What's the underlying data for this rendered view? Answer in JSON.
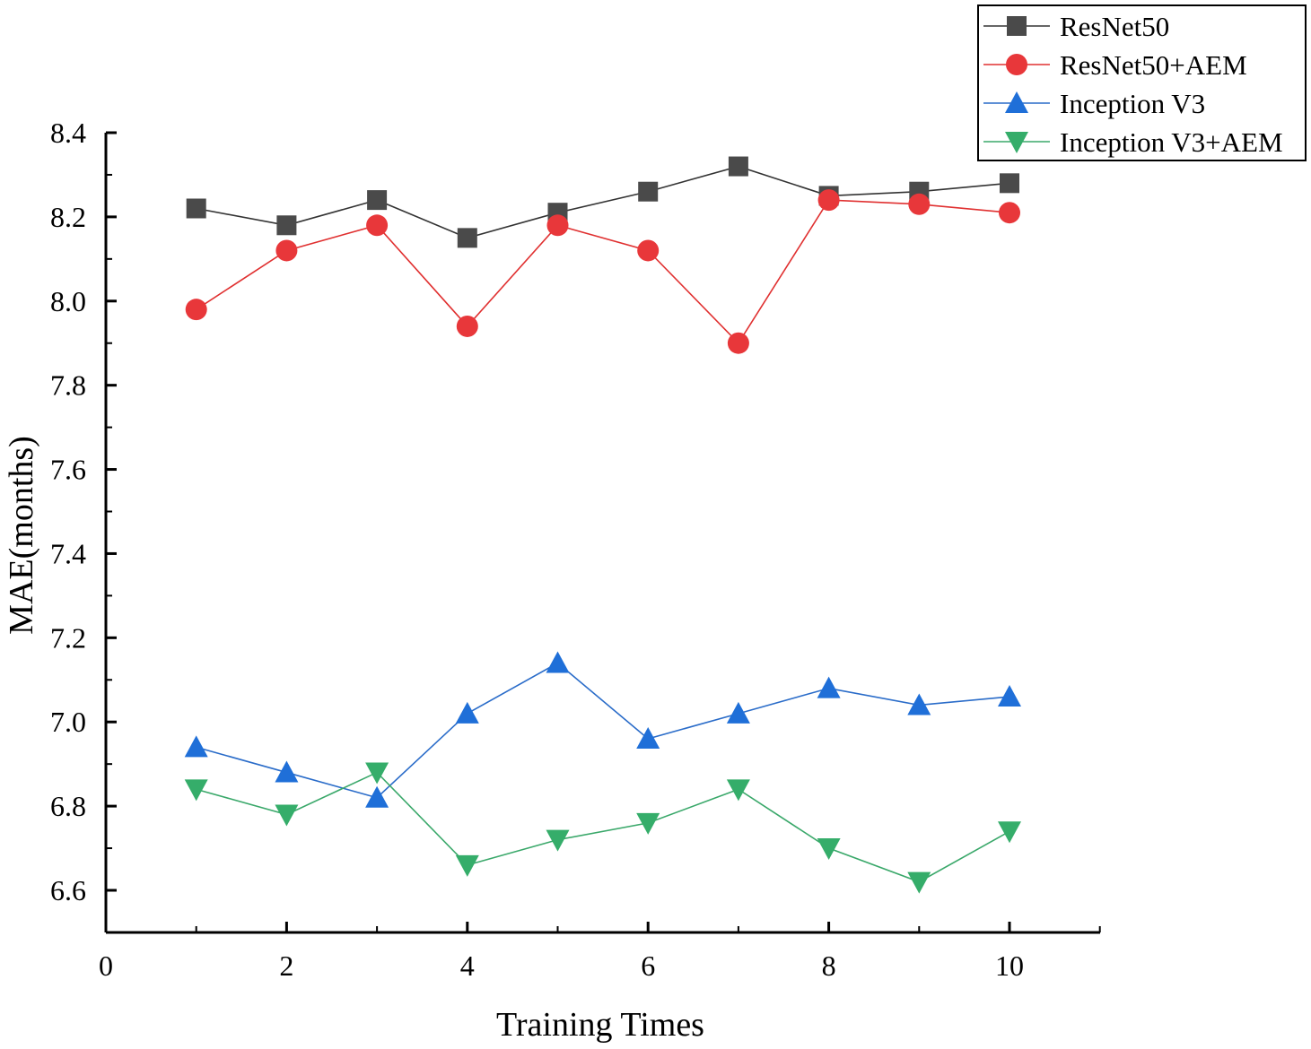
{
  "chart_data": {
    "type": "line",
    "title": "",
    "xlabel": "Training Times",
    "ylabel": "MAE(months)",
    "xlim": [
      0,
      11
    ],
    "ylim": [
      6.5,
      8.4
    ],
    "x_ticks": [
      0,
      2,
      4,
      6,
      8,
      10
    ],
    "x_tick_labels": [
      "0",
      "2",
      "4",
      "6",
      "8",
      "10"
    ],
    "y_ticks": [
      6.6,
      6.8,
      7.0,
      7.2,
      7.4,
      7.6,
      7.8,
      8.0,
      8.2,
      8.4
    ],
    "y_tick_labels": [
      "6.6",
      "6.8",
      "7.0",
      "7.2",
      "7.4",
      "7.6",
      "7.8",
      "8.0",
      "8.2",
      "8.4"
    ],
    "grid": false,
    "legend_position": "top-right",
    "x": [
      1,
      2,
      3,
      4,
      5,
      6,
      7,
      8,
      9,
      10
    ],
    "series": [
      {
        "name": "ResNet50",
        "marker": "square",
        "color": "#4a4a4a",
        "line_color": "#333333",
        "values": [
          8.22,
          8.18,
          8.24,
          8.15,
          8.21,
          8.26,
          8.32,
          8.25,
          8.26,
          8.28
        ]
      },
      {
        "name": "ResNet50+AEM",
        "marker": "circle",
        "color": "#e8373a",
        "line_color": "#e03030",
        "values": [
          7.98,
          8.12,
          8.18,
          7.94,
          8.18,
          8.12,
          7.9,
          8.24,
          8.23,
          8.21
        ]
      },
      {
        "name": "Inception V3",
        "marker": "triangle-up",
        "color": "#1f6fd8",
        "line_color": "#2a6cc9",
        "values": [
          6.94,
          6.88,
          6.82,
          7.02,
          7.14,
          6.96,
          7.02,
          7.08,
          7.04,
          7.06
        ]
      },
      {
        "name": "Inception V3+AEM",
        "marker": "triangle-down",
        "color": "#35ad6a",
        "line_color": "#3aa86a",
        "values": [
          6.84,
          6.78,
          6.88,
          6.66,
          6.72,
          6.76,
          6.84,
          6.7,
          6.62,
          6.74
        ]
      }
    ]
  }
}
